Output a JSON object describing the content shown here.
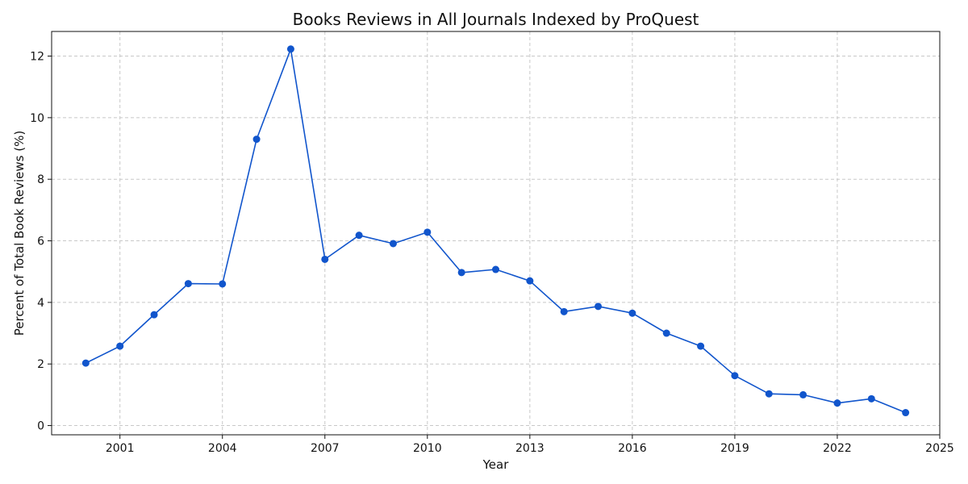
{
  "chart_data": {
    "type": "line",
    "title": "Books Reviews in All Journals Indexed by ProQuest",
    "xlabel": "Year",
    "ylabel": "Percent of Total Book Reviews (%)",
    "xlim": [
      1999.0,
      2025.0
    ],
    "ylim": [
      -0.3,
      12.8
    ],
    "x_ticks": [
      2001,
      2004,
      2007,
      2010,
      2013,
      2016,
      2019,
      2022,
      2025
    ],
    "y_ticks": [
      0,
      2,
      4,
      6,
      8,
      10,
      12
    ],
    "grid": true,
    "series": [
      {
        "color": "#1155cc",
        "marker": "circle",
        "x": [
          2000,
          2001,
          2002,
          2003,
          2004,
          2005,
          2006,
          2007,
          2008,
          2009,
          2010,
          2011,
          2012,
          2013,
          2014,
          2015,
          2016,
          2017,
          2018,
          2019,
          2020,
          2021,
          2022,
          2023,
          2024
        ],
        "y": [
          2.03,
          2.58,
          3.6,
          4.61,
          4.6,
          9.3,
          12.23,
          5.4,
          6.18,
          5.91,
          6.28,
          4.97,
          5.07,
          4.7,
          3.7,
          3.87,
          3.65,
          3.0,
          2.58,
          1.62,
          1.03,
          1.0,
          0.73,
          0.87,
          0.42
        ]
      }
    ]
  }
}
